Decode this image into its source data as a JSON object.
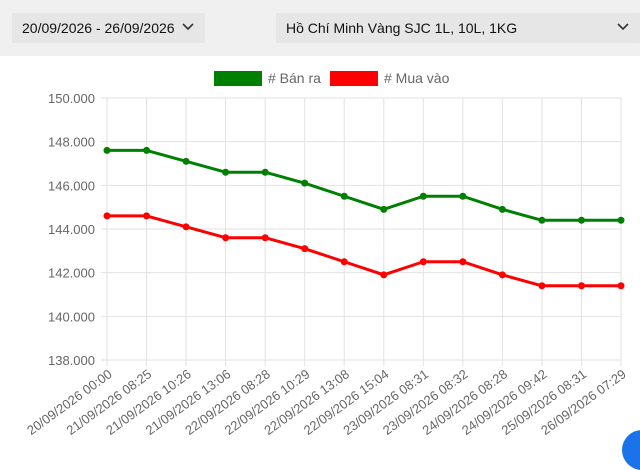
{
  "filters": {
    "date_range": "20/09/2026 - 26/09/2026",
    "product": "Hồ Chí Minh Vàng SJC 1L, 10L, 1KG",
    "dropdown_icon": "chevron-down-icon"
  },
  "chart_data": {
    "type": "line",
    "title": "",
    "xlabel": "",
    "ylabel": "",
    "categories": [
      "20/09/2026 00:00",
      "21/09/2026 08:25",
      "21/09/2026 10:26",
      "21/09/2026 13:06",
      "22/09/2026 08:28",
      "22/09/2026 10:29",
      "22/09/2026 13:08",
      "22/09/2026 15:04",
      "23/09/2026 08:31",
      "23/09/2026 08:32",
      "24/09/2026 08:28",
      "24/09/2026 09:42",
      "25/09/2026 08:31",
      "26/09/2026 07:29"
    ],
    "ylim": [
      138000,
      150000
    ],
    "yticks": [
      "138.000",
      "140.000",
      "142.000",
      "144.000",
      "146.000",
      "148.000",
      "150.000"
    ],
    "ytick_values": [
      138000,
      140000,
      142000,
      144000,
      146000,
      148000,
      150000
    ],
    "grid": true,
    "legend_position": "top",
    "series": [
      {
        "name": "# Bán ra",
        "color": "#008000",
        "values": [
          147600,
          147600,
          147100,
          146600,
          146600,
          146100,
          145500,
          144900,
          145500,
          145500,
          144900,
          144400,
          144400,
          144400
        ]
      },
      {
        "name": "# Mua vào",
        "color": "#ff0000",
        "values": [
          144600,
          144600,
          144100,
          143600,
          143600,
          143100,
          142500,
          141900,
          142500,
          142500,
          141900,
          141400,
          141400,
          141400
        ]
      }
    ]
  }
}
